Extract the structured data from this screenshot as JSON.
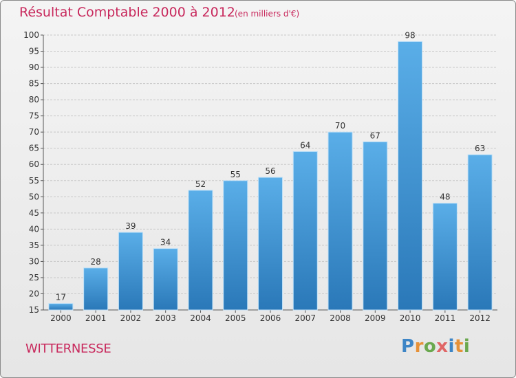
{
  "header": {
    "title": "Résultat Comptable 2000 à 2012",
    "subtitle": "(en milliers d'€)"
  },
  "place": "WITTERNESSE",
  "logo": {
    "text": "Proxiti",
    "letter_colors": [
      "#3d85c6",
      "#e69138",
      "#6aa84f",
      "#e06666",
      "#3d85c6",
      "#e69138",
      "#6aa84f"
    ]
  },
  "colors": {
    "title": "#c8285c",
    "bar_top": "#5aaee8",
    "bar_bottom": "#2a78b8",
    "grid": "#c8c8c8"
  },
  "chart_data": {
    "type": "bar",
    "title": "Résultat Comptable 2000 à 2012",
    "subtitle": "(en milliers d'€)",
    "categories": [
      "2000",
      "2001",
      "2002",
      "2003",
      "2004",
      "2005",
      "2006",
      "2007",
      "2008",
      "2009",
      "2010",
      "2011",
      "2012"
    ],
    "values": [
      17,
      28,
      39,
      34,
      52,
      55,
      56,
      64,
      70,
      67,
      98,
      48,
      63
    ],
    "ylim": [
      15,
      100
    ],
    "yticks": [
      15,
      20,
      25,
      30,
      35,
      40,
      45,
      50,
      55,
      60,
      65,
      70,
      75,
      80,
      85,
      90,
      95,
      100
    ],
    "xlabel": "",
    "ylabel": "",
    "grid": true
  }
}
